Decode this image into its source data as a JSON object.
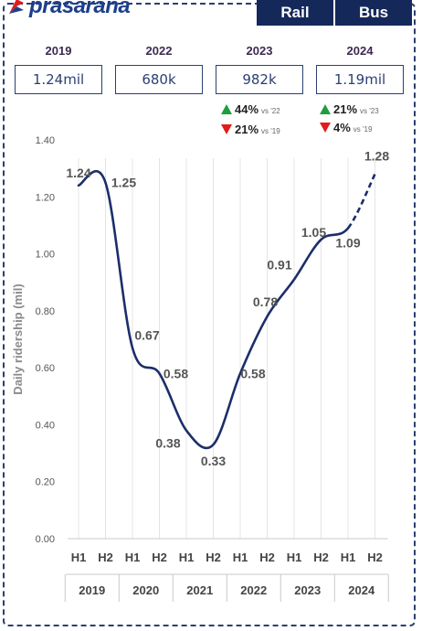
{
  "brand": {
    "name": "prasarana",
    "logo_icon": "prasarana-logo-icon",
    "color": "#1d3e8c"
  },
  "toggles": [
    {
      "label": "Rail"
    },
    {
      "label": "Bus"
    }
  ],
  "summary": [
    {
      "year": "2019",
      "value": "1.24mil"
    },
    {
      "year": "2022",
      "value": "680k"
    },
    {
      "year": "2023",
      "value": "982k",
      "changes": [
        {
          "direction": "up",
          "pct": "44%",
          "vs": "vs '22"
        },
        {
          "direction": "down",
          "pct": "21%",
          "vs": "vs '19"
        }
      ]
    },
    {
      "year": "2024",
      "value": "1.19mil",
      "changes": [
        {
          "direction": "up",
          "pct": "21%",
          "vs": "vs '23"
        },
        {
          "direction": "down",
          "pct": "4%",
          "vs": "vs '19"
        }
      ]
    }
  ],
  "colors": {
    "line": "#1c2e6a",
    "up": "#1e9e3e",
    "down": "#e21b1b",
    "accent": "#14285a"
  },
  "chart_data": {
    "type": "line",
    "ylabel": "Daily ridership (mil)",
    "ylim": [
      0,
      1.4
    ],
    "yticks": [
      "0.00",
      "0.20",
      "0.40",
      "0.60",
      "0.80",
      "1.00",
      "1.20",
      "1.40"
    ],
    "x": [
      "H1",
      "H2",
      "H1",
      "H2",
      "H1",
      "H2",
      "H1",
      "H2",
      "H1",
      "H2",
      "H1",
      "H2"
    ],
    "years": [
      "2019",
      "2020",
      "2021",
      "2022",
      "2023",
      "2024"
    ],
    "series": [
      {
        "values": [
          1.24,
          1.25,
          0.67,
          0.58,
          0.38,
          0.33,
          0.58,
          0.78,
          0.91,
          1.05,
          1.09,
          1.28
        ],
        "labels": [
          "1.24",
          "1.25",
          "0.67",
          "0.58",
          "0.38",
          "0.33",
          "0.58",
          "0.78",
          "0.91",
          "1.05",
          "1.09",
          "1.28"
        ],
        "dashed_last_segment": true
      }
    ],
    "grid": "vertical"
  }
}
